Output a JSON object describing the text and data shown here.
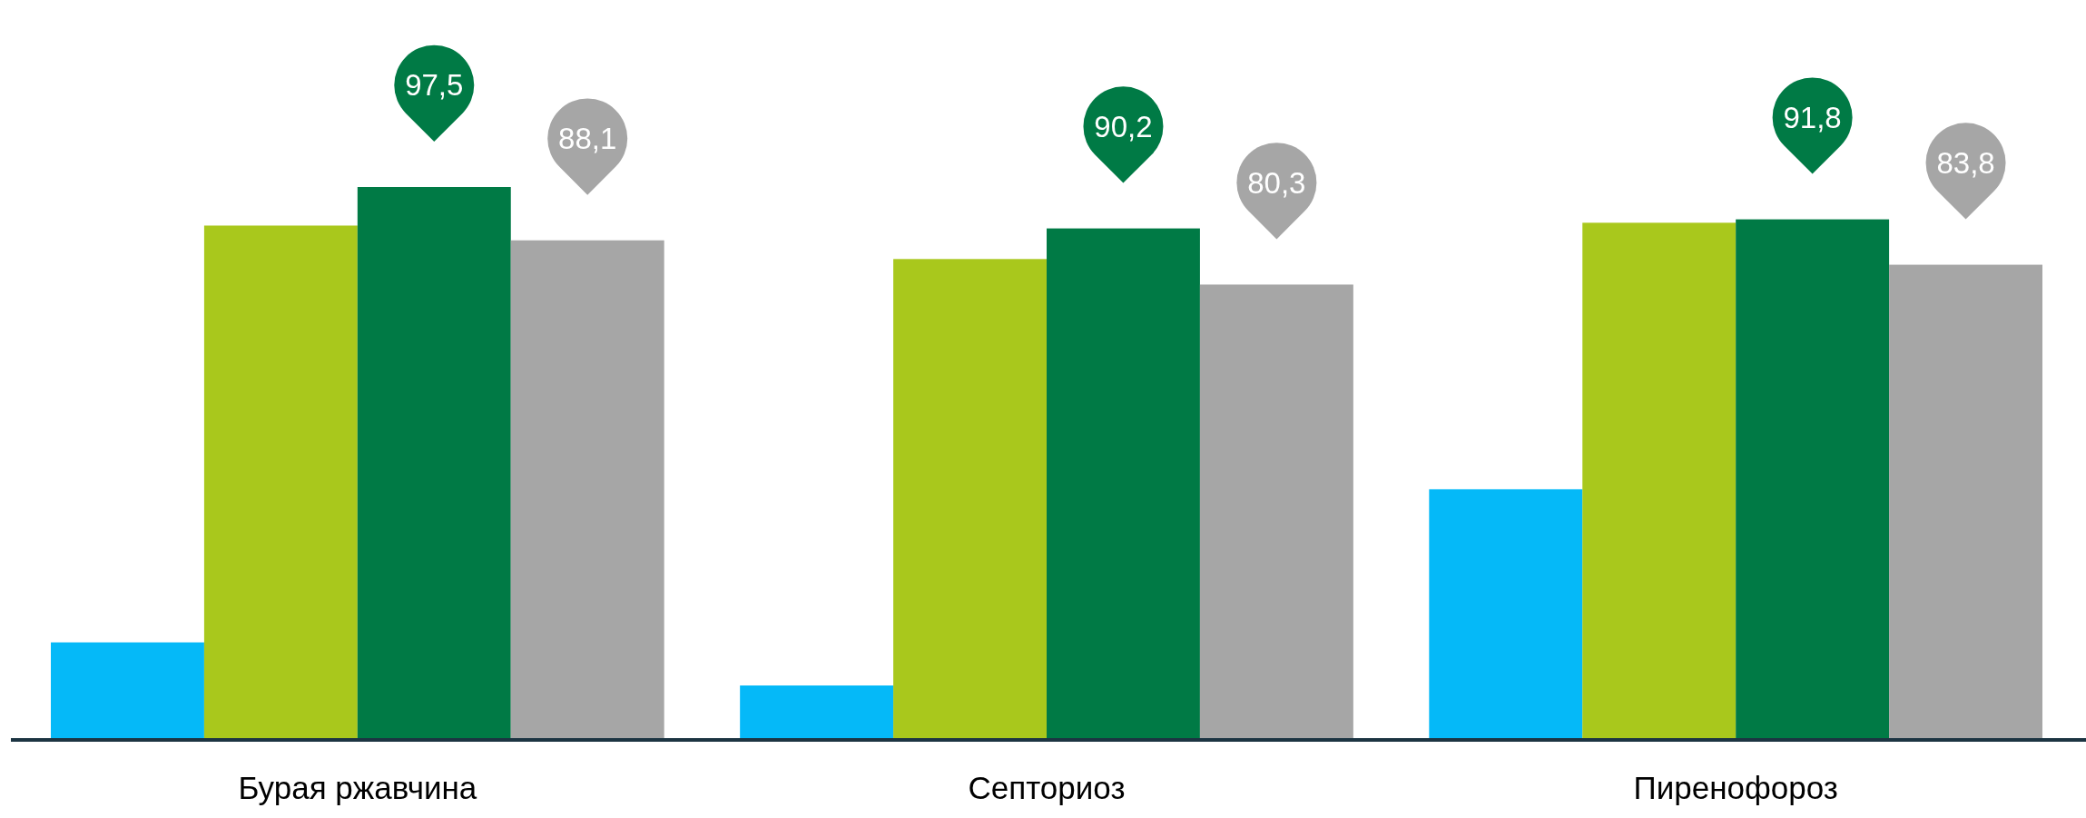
{
  "chart_data": {
    "type": "bar",
    "categories": [
      "Бурая ржавчина",
      "Септориоз",
      "Пиренофороз"
    ],
    "series": [
      {
        "color": "#05b9f8",
        "values": [
          17.2,
          9.6,
          44.2
        ]
      },
      {
        "color": "#a9c81c",
        "values": [
          90.7,
          84.8,
          91.2
        ]
      },
      {
        "color": "#007a45",
        "values": [
          97.5,
          90.2,
          91.8
        ],
        "value_labels": [
          "97,5",
          "90,2",
          "91,8"
        ]
      },
      {
        "color": "#a6a6a6",
        "values": [
          88.1,
          80.3,
          83.8
        ],
        "value_labels": [
          "88,1",
          "80,3",
          "83,8"
        ]
      }
    ]
  }
}
